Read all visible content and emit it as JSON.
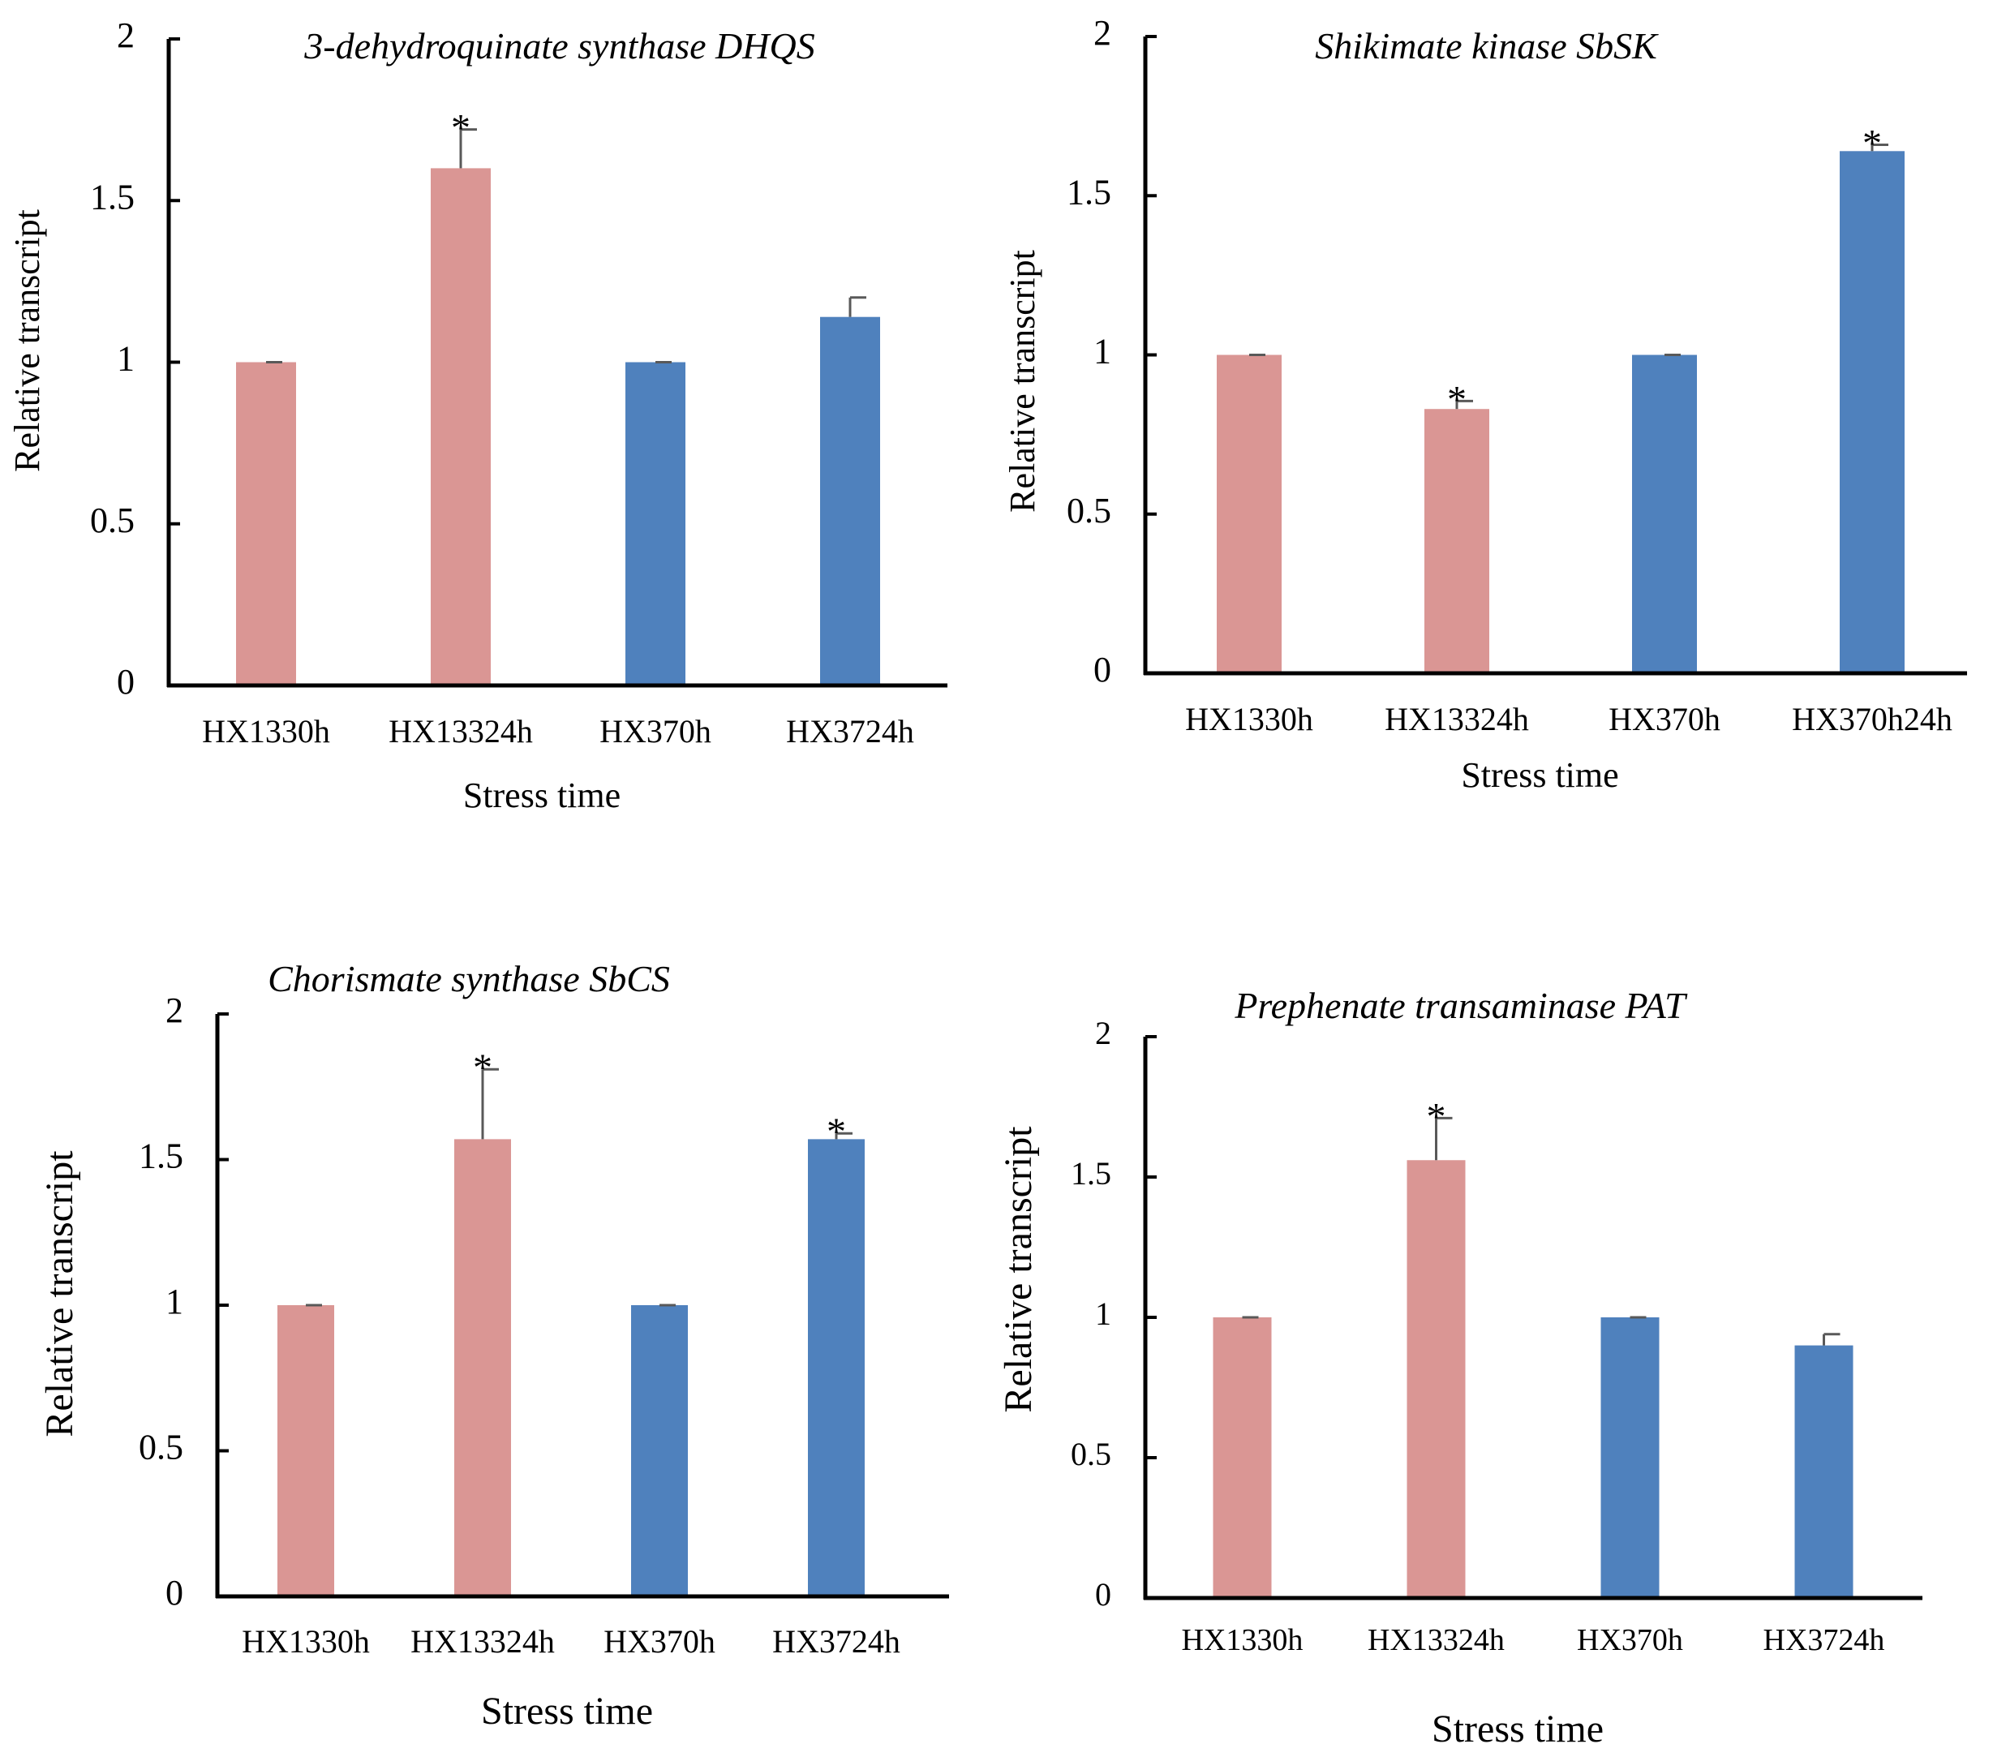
{
  "colors": {
    "pink": "#DA9694",
    "blue": "#4F81BD",
    "axis": "#000000",
    "errorbar": "#595959"
  },
  "chart_data": [
    {
      "type": "bar",
      "title": "3-dehydroquinate synthase DHQS",
      "xlabel": "Stress time",
      "ylabel": "Relative transcript",
      "ylim": [
        0,
        2
      ],
      "yticks": [
        "0",
        "0.5",
        "1",
        "1.5",
        "2"
      ],
      "categories": [
        "HX1330h",
        "HX13324h",
        "HX370h",
        "HX3724h"
      ],
      "values": [
        1.0,
        1.6,
        1.0,
        1.14
      ],
      "errors": [
        0.0,
        0.12,
        0.0,
        0.06
      ],
      "significant": [
        false,
        true,
        false,
        false
      ],
      "bar_colors": [
        "pink",
        "pink",
        "blue",
        "blue"
      ],
      "significance_mark": "*"
    },
    {
      "type": "bar",
      "title": "Shikimate kinase SbSK",
      "xlabel": "Stress time",
      "ylabel": "Relative transcript",
      "ylim": [
        0,
        2
      ],
      "yticks": [
        "0",
        "0.5",
        "1",
        "1.5",
        "2"
      ],
      "categories": [
        "HX1330h",
        "HX13324h",
        "HX370h",
        "HX370h24h"
      ],
      "values": [
        1.0,
        0.83,
        1.0,
        1.64
      ],
      "errors": [
        0.0,
        0.025,
        0.0,
        0.02
      ],
      "significant": [
        false,
        true,
        false,
        true
      ],
      "bar_colors": [
        "pink",
        "pink",
        "blue",
        "blue"
      ],
      "significance_mark": "*"
    },
    {
      "type": "bar",
      "title": "Chorismate synthase SbCS",
      "xlabel": "Stress time",
      "ylabel": "Relative transcript",
      "ylim": [
        0,
        2
      ],
      "yticks": [
        "0",
        "0.5",
        "1",
        "1.5",
        "2"
      ],
      "categories": [
        "HX1330h",
        "HX13324h",
        "HX370h",
        "HX3724h"
      ],
      "values": [
        1.0,
        1.57,
        1.0,
        1.57
      ],
      "errors": [
        0.0,
        0.24,
        0.0,
        0.02
      ],
      "significant": [
        false,
        true,
        false,
        true
      ],
      "bar_colors": [
        "pink",
        "pink",
        "blue",
        "blue"
      ],
      "significance_mark": "*"
    },
    {
      "type": "bar",
      "title": "Prephenate transaminase PAT",
      "xlabel": "Stress time",
      "ylabel": "Relative transcript",
      "ylim": [
        0,
        2
      ],
      "yticks": [
        "0",
        "0.5",
        "1",
        "1.5",
        "2"
      ],
      "categories": [
        "HX1330h",
        "HX13324h",
        "HX370h",
        "HX3724h"
      ],
      "values": [
        1.0,
        1.56,
        1.0,
        0.9
      ],
      "errors": [
        0.0,
        0.15,
        0.0,
        0.04
      ],
      "significant": [
        false,
        true,
        false,
        false
      ],
      "bar_colors": [
        "pink",
        "pink",
        "blue",
        "blue"
      ],
      "significance_mark": "*"
    }
  ]
}
